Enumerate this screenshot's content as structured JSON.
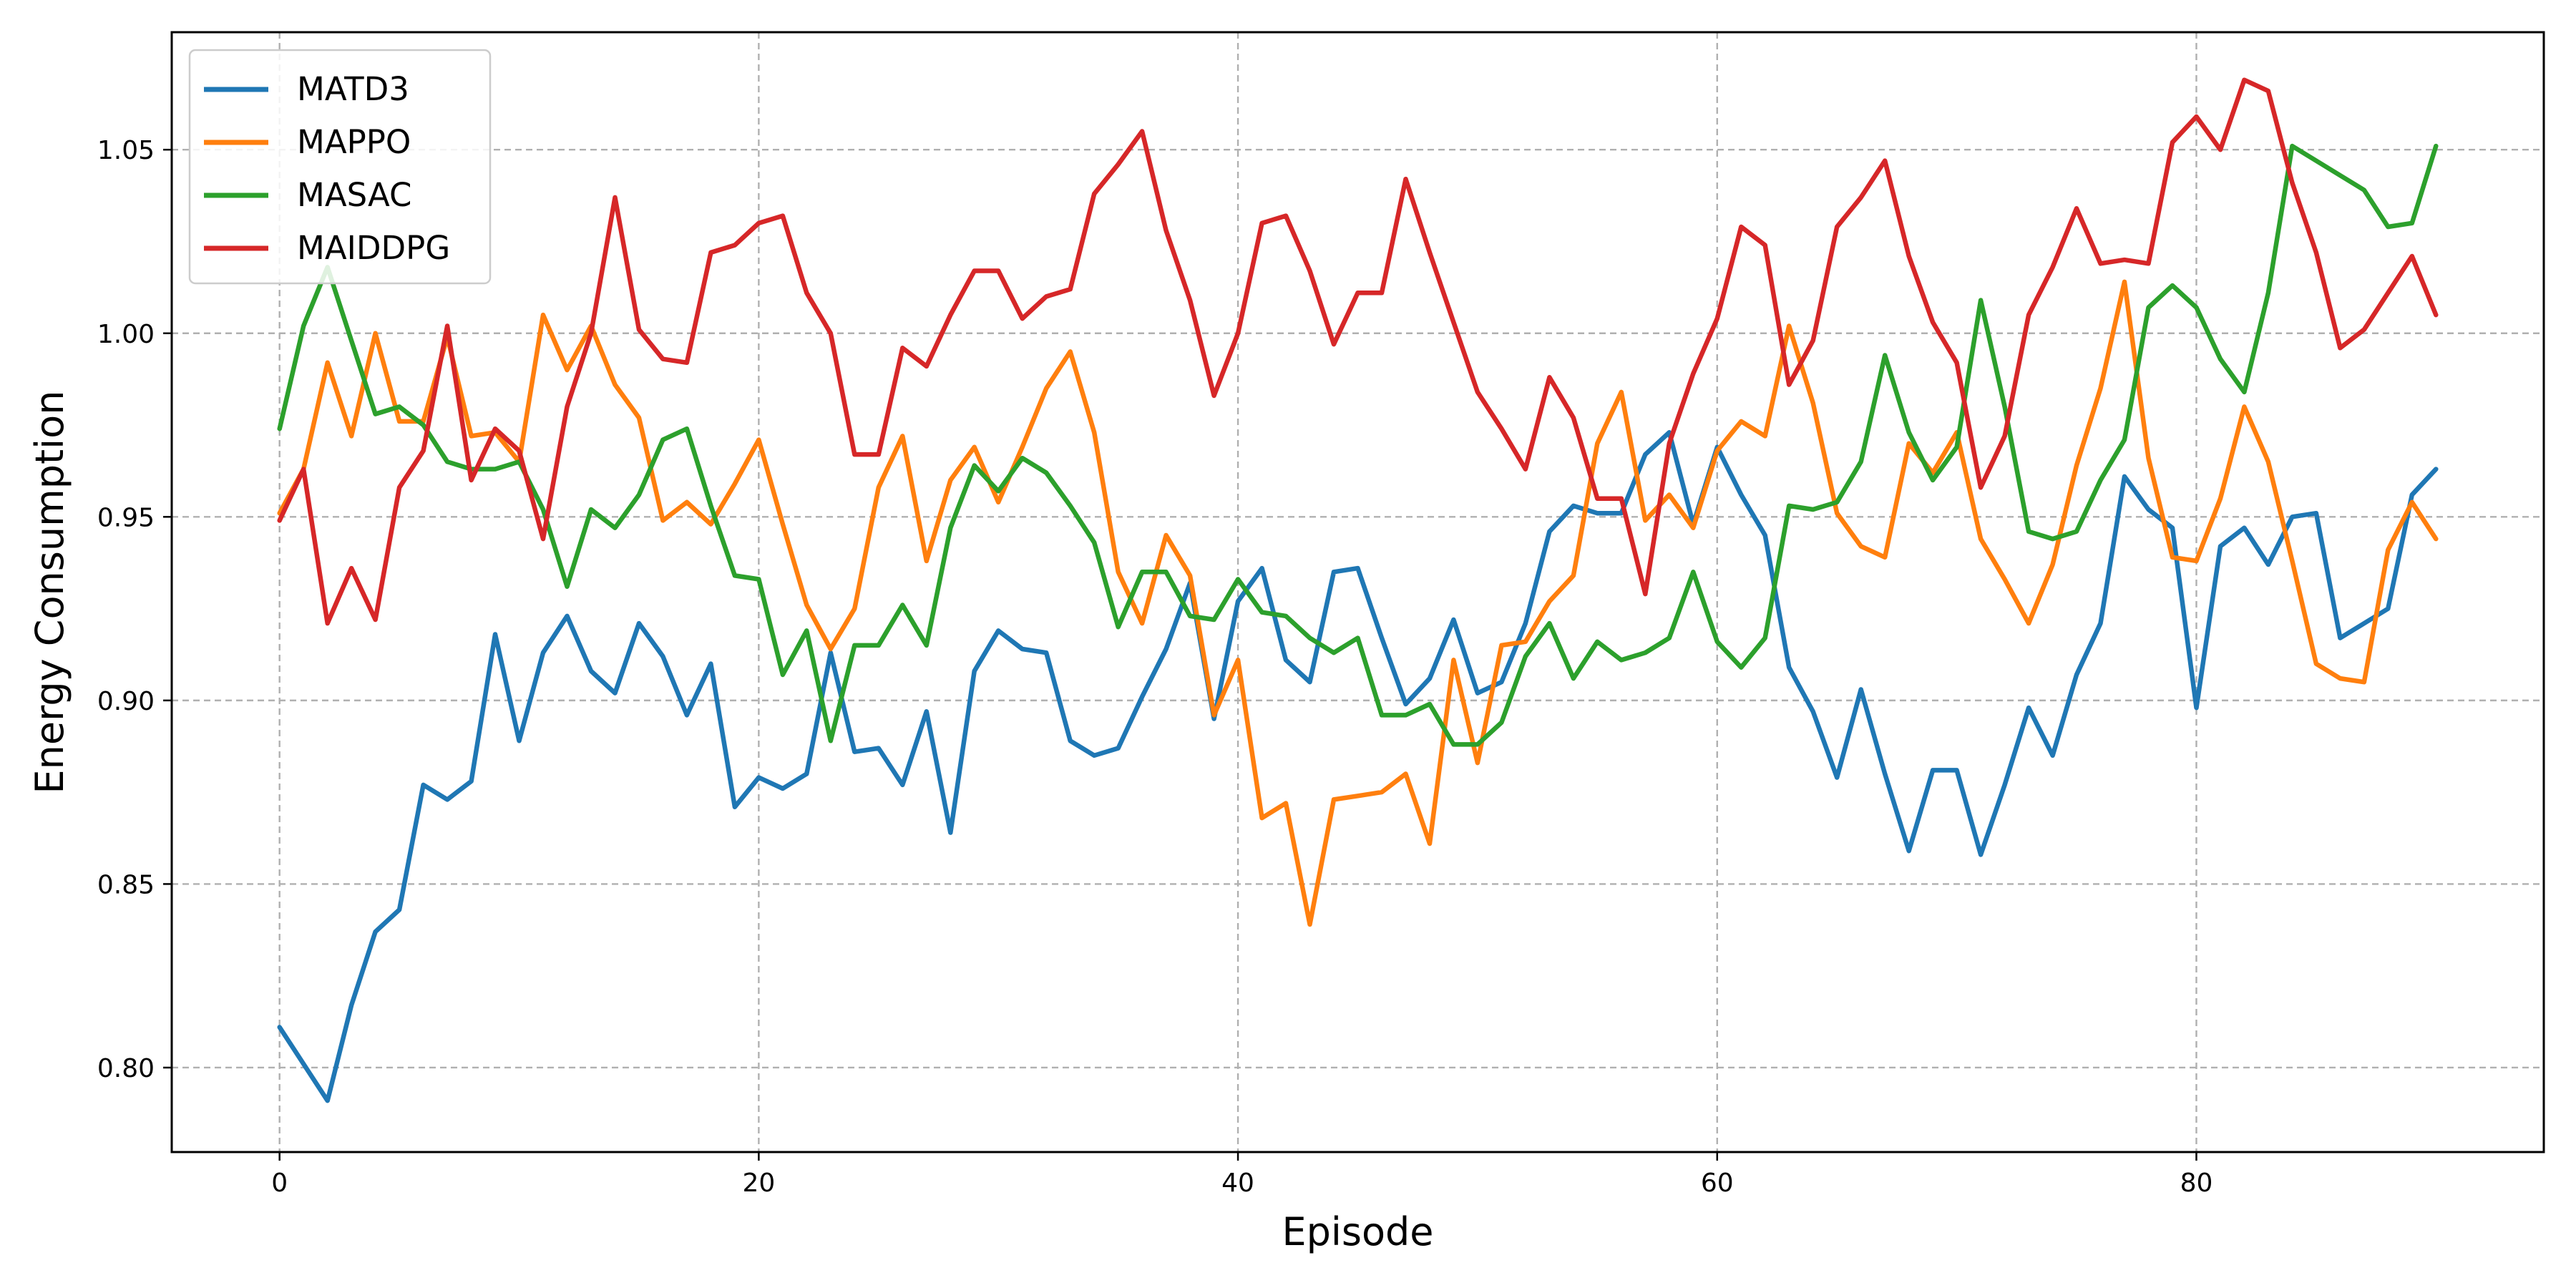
{
  "chart_data": {
    "type": "line",
    "title": "",
    "xlabel": "Episode",
    "ylabel": "Energy Consumption",
    "xlim": [
      -4.5,
      94.5
    ],
    "ylim": [
      0.777,
      1.082
    ],
    "xticks": [
      0,
      20,
      40,
      60,
      80
    ],
    "yticks": [
      0.8,
      0.85,
      0.9,
      0.95,
      1.0,
      1.05
    ],
    "grid": true,
    "legend_position": "top-left",
    "series": [
      {
        "name": "MATD3",
        "color": "#1f77b4",
        "values": [
          0.811,
          0.801,
          0.791,
          0.817,
          0.837,
          0.843,
          0.877,
          0.873,
          0.878,
          0.918,
          0.889,
          0.913,
          0.923,
          0.908,
          0.902,
          0.921,
          0.912,
          0.896,
          0.91,
          0.871,
          0.879,
          0.876,
          0.88,
          0.913,
          0.886,
          0.887,
          0.877,
          0.897,
          0.864,
          0.908,
          0.919,
          0.914,
          0.913,
          0.889,
          0.885,
          0.887,
          0.901,
          0.914,
          0.932,
          0.895,
          0.927,
          0.936,
          0.911,
          0.905,
          0.935,
          0.936,
          0.917,
          0.899,
          0.906,
          0.922,
          0.902,
          0.905,
          0.921,
          0.946,
          0.953,
          0.951,
          0.951,
          0.967,
          0.973,
          0.948,
          0.969,
          0.956,
          0.945,
          0.909,
          0.897,
          0.879,
          0.903,
          0.88,
          0.859,
          0.881,
          0.881,
          0.858,
          0.877,
          0.898,
          0.885,
          0.907,
          0.921,
          0.961,
          0.952,
          0.947,
          0.898,
          0.942,
          0.947,
          0.937,
          0.95,
          0.951,
          0.917,
          0.921,
          0.925,
          0.956,
          0.963
        ]
      },
      {
        "name": "MAPPO",
        "color": "#ff7f0e",
        "values": [
          0.951,
          0.963,
          0.992,
          0.972,
          1.0,
          0.976,
          0.976,
          0.999,
          0.972,
          0.973,
          0.965,
          1.005,
          0.99,
          1.002,
          0.986,
          0.977,
          0.949,
          0.954,
          0.948,
          0.959,
          0.971,
          0.948,
          0.926,
          0.914,
          0.925,
          0.958,
          0.972,
          0.938,
          0.96,
          0.969,
          0.954,
          0.969,
          0.985,
          0.995,
          0.973,
          0.935,
          0.921,
          0.945,
          0.934,
          0.896,
          0.911,
          0.868,
          0.872,
          0.839,
          0.873,
          0.874,
          0.875,
          0.88,
          0.861,
          0.911,
          0.883,
          0.915,
          0.916,
          0.927,
          0.934,
          0.97,
          0.984,
          0.949,
          0.956,
          0.947,
          0.968,
          0.976,
          0.972,
          1.002,
          0.981,
          0.951,
          0.942,
          0.939,
          0.97,
          0.962,
          0.973,
          0.944,
          0.933,
          0.921,
          0.937,
          0.964,
          0.985,
          1.014,
          0.966,
          0.939,
          0.938,
          0.955,
          0.98,
          0.965,
          0.938,
          0.91,
          0.906,
          0.905,
          0.941,
          0.954,
          0.944
        ]
      },
      {
        "name": "MASAC",
        "color": "#2ca02c",
        "values": [
          0.974,
          1.002,
          1.018,
          0.998,
          0.978,
          0.98,
          0.975,
          0.965,
          0.963,
          0.963,
          0.965,
          0.952,
          0.931,
          0.952,
          0.947,
          0.956,
          0.971,
          0.974,
          0.953,
          0.934,
          0.933,
          0.907,
          0.919,
          0.889,
          0.915,
          0.915,
          0.926,
          0.915,
          0.947,
          0.964,
          0.957,
          0.966,
          0.962,
          0.953,
          0.943,
          0.92,
          0.935,
          0.935,
          0.923,
          0.922,
          0.933,
          0.924,
          0.923,
          0.917,
          0.913,
          0.917,
          0.896,
          0.896,
          0.899,
          0.888,
          0.888,
          0.894,
          0.912,
          0.921,
          0.906,
          0.916,
          0.911,
          0.913,
          0.917,
          0.935,
          0.916,
          0.909,
          0.917,
          0.953,
          0.952,
          0.954,
          0.965,
          0.994,
          0.973,
          0.96,
          0.969,
          1.009,
          0.98,
          0.946,
          0.944,
          0.946,
          0.96,
          0.971,
          1.007,
          1.013,
          1.007,
          0.993,
          0.984,
          1.011,
          1.051,
          1.047,
          1.043,
          1.039,
          1.029,
          1.03,
          1.051
        ]
      },
      {
        "name": "MAIDDPG",
        "color": "#d62728",
        "values": [
          0.949,
          0.963,
          0.921,
          0.936,
          0.922,
          0.958,
          0.968,
          1.002,
          0.96,
          0.974,
          0.968,
          0.944,
          0.98,
          1.0,
          1.037,
          1.001,
          0.993,
          0.992,
          1.022,
          1.024,
          1.03,
          1.032,
          1.011,
          1.0,
          0.967,
          0.967,
          0.996,
          0.991,
          1.005,
          1.017,
          1.017,
          1.004,
          1.01,
          1.012,
          1.038,
          1.046,
          1.055,
          1.028,
          1.009,
          0.983,
          1.0,
          1.03,
          1.032,
          1.017,
          0.997,
          1.011,
          1.011,
          1.042,
          1.022,
          1.003,
          0.984,
          0.974,
          0.963,
          0.988,
          0.977,
          0.955,
          0.955,
          0.929,
          0.97,
          0.989,
          1.004,
          1.029,
          1.024,
          0.986,
          0.998,
          1.029,
          1.037,
          1.047,
          1.021,
          1.003,
          0.992,
          0.958,
          0.972,
          1.005,
          1.018,
          1.034,
          1.019,
          1.02,
          1.019,
          1.052,
          1.059,
          1.05,
          1.069,
          1.066,
          1.041,
          1.022,
          0.996,
          1.001,
          1.011,
          1.021,
          1.005
        ]
      }
    ]
  }
}
